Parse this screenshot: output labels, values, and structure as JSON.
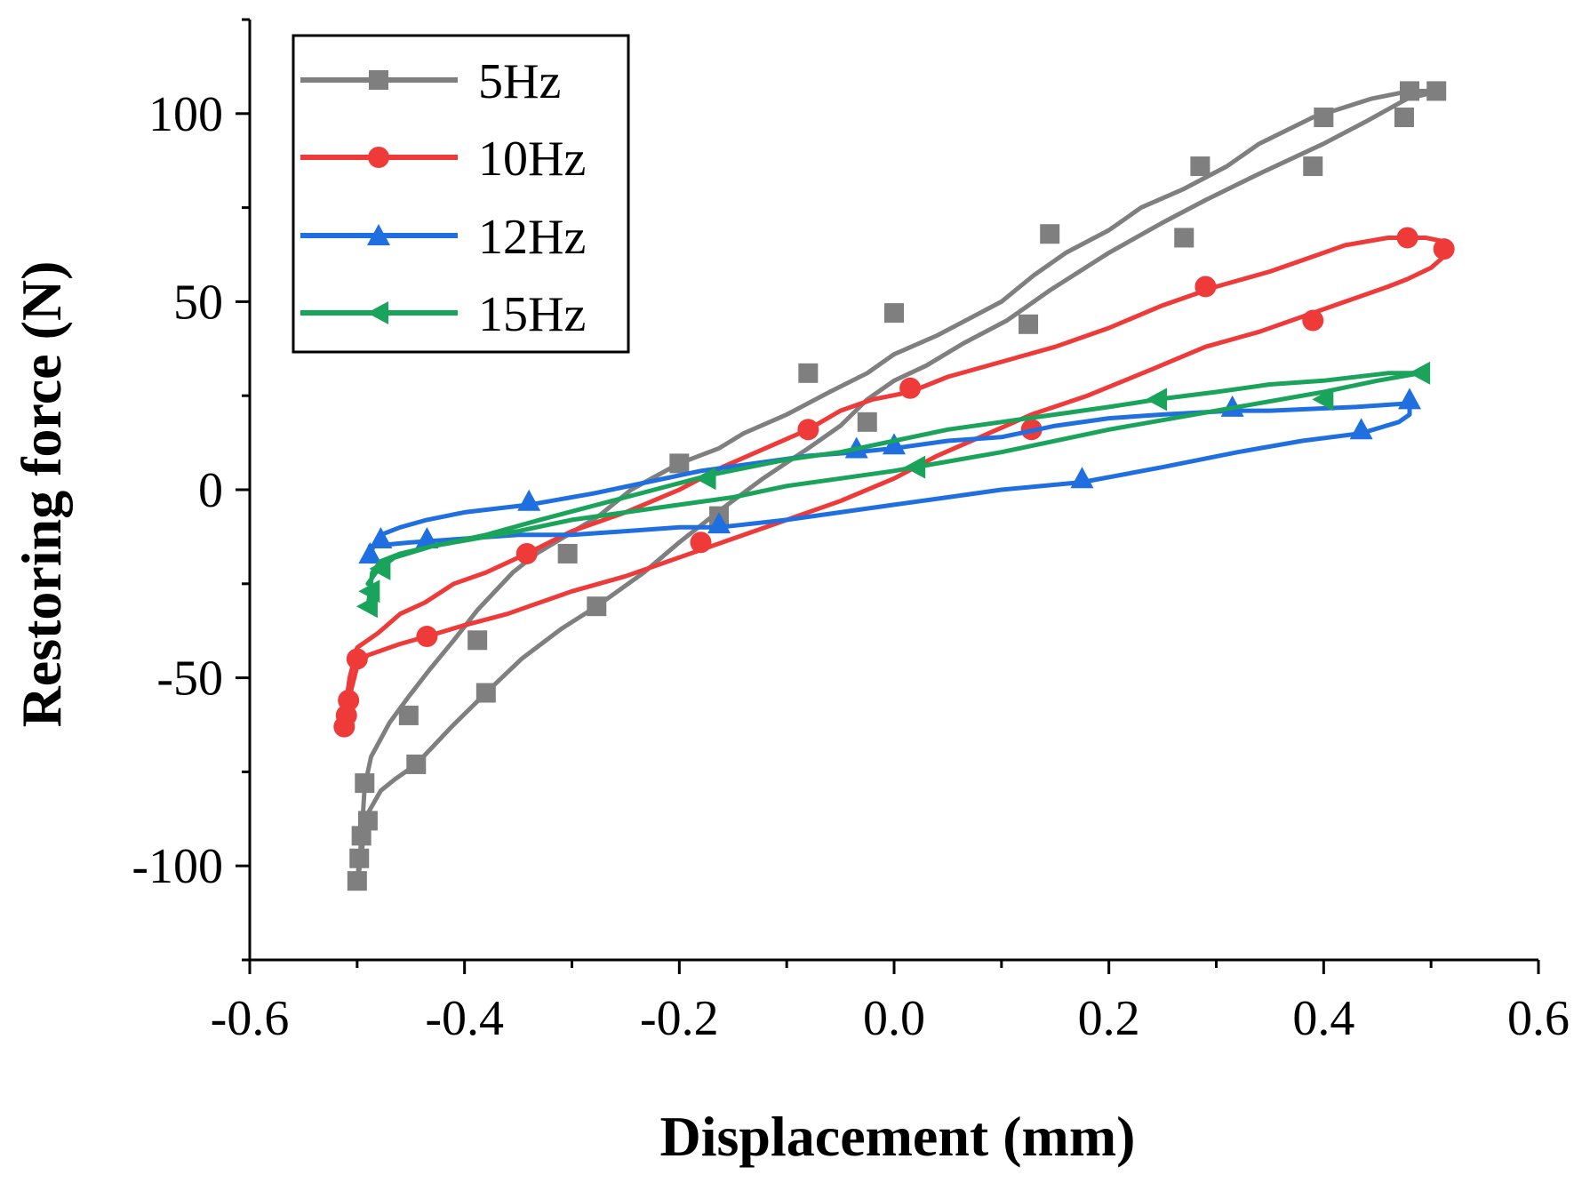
{
  "chart_data": {
    "type": "line",
    "title": "",
    "xlabel": "Displacement (mm)",
    "ylabel": "Restoring force (N)",
    "xlim": [
      -0.6,
      0.6
    ],
    "ylim": [
      -125,
      125
    ],
    "xticks": [
      -0.6,
      -0.4,
      -0.2,
      0.0,
      0.2,
      0.4,
      0.6
    ],
    "xtick_labels": [
      "-0.6",
      "-0.4",
      "-0.2",
      "0.0",
      "0.2",
      "0.4",
      "0.6"
    ],
    "yticks": [
      -100,
      -50,
      0,
      50,
      100
    ],
    "ytick_labels": [
      "-100",
      "-50",
      "0",
      "50",
      "100"
    ],
    "grid": false,
    "legend_position": "top-left",
    "series": [
      {
        "name": "5Hz",
        "color": "#7f7f7f",
        "marker": "square",
        "x": [
          -0.5,
          -0.498,
          -0.496,
          -0.494,
          -0.49,
          -0.478,
          -0.465,
          -0.445,
          -0.412,
          -0.38,
          -0.347,
          -0.31,
          -0.277,
          -0.233,
          -0.2,
          -0.16,
          -0.122,
          -0.08,
          -0.05,
          -0.025,
          0.0,
          0.03,
          0.065,
          0.105,
          0.145,
          0.2,
          0.25,
          0.29,
          0.34,
          0.4,
          0.44,
          0.478,
          0.508,
          0.508,
          0.48,
          0.445,
          0.39,
          0.34,
          0.31,
          0.27,
          0.23,
          0.2,
          0.16,
          0.13,
          0.1,
          0.06,
          0.04,
          0.0,
          -0.025,
          -0.06,
          -0.1,
          -0.14,
          -0.163,
          -0.2,
          -0.245,
          -0.275,
          -0.304,
          -0.333,
          -0.355,
          -0.388,
          -0.41,
          -0.433,
          -0.452,
          -0.47,
          -0.487,
          -0.493,
          -0.495,
          -0.497,
          -0.5
        ],
        "y": [
          -104,
          -101,
          -97,
          -92,
          -86,
          -80,
          -77,
          -73,
          -63,
          -54,
          -45,
          -37,
          -31,
          -22,
          -14,
          -5,
          3,
          11,
          17,
          24,
          29,
          33,
          39,
          45,
          53,
          63,
          71,
          77,
          84,
          92,
          98,
          104,
          106,
          106,
          106,
          104,
          99,
          92,
          86,
          80,
          75,
          69,
          63,
          57,
          50,
          44,
          41,
          36,
          31,
          26,
          20,
          15,
          11,
          7,
          0,
          -7,
          -12,
          -17,
          -22,
          -32,
          -40,
          -48,
          -55,
          -62,
          -71,
          -79,
          -88,
          -96,
          -104
        ],
        "marker_x": [
          -0.498,
          -0.496,
          -0.49,
          -0.445,
          -0.38,
          -0.277,
          -0.163,
          -0.08,
          -0.025,
          0.0,
          0.125,
          0.145,
          0.27,
          0.285,
          0.39,
          0.4,
          0.475,
          0.48,
          0.505,
          -0.2,
          -0.304,
          -0.388,
          -0.452,
          -0.493,
          -0.5
        ],
        "marker_y": [
          -98,
          -92,
          -88,
          -73,
          -54,
          -31,
          -7,
          31,
          18,
          47,
          44,
          68,
          67,
          86,
          86,
          99,
          99,
          106,
          106,
          7,
          -17,
          -40,
          -60,
          -78,
          -104
        ]
      },
      {
        "name": "10Hz",
        "color": "#ef3a3a",
        "marker": "circle",
        "x": [
          -0.512,
          -0.51,
          -0.508,
          -0.5,
          -0.49,
          -0.46,
          -0.435,
          -0.4,
          -0.36,
          -0.34,
          -0.3,
          -0.25,
          -0.2,
          -0.15,
          -0.1,
          -0.05,
          0.0,
          0.04,
          0.08,
          0.128,
          0.18,
          0.24,
          0.29,
          0.34,
          0.39,
          0.42,
          0.46,
          0.478,
          0.5,
          0.512,
          0.512,
          0.495,
          0.46,
          0.42,
          0.39,
          0.35,
          0.3,
          0.25,
          0.2,
          0.15,
          0.1,
          0.05,
          0.015,
          -0.02,
          -0.05,
          -0.08,
          -0.12,
          -0.16,
          -0.2,
          -0.25,
          -0.3,
          -0.342,
          -0.38,
          -0.41,
          -0.437,
          -0.46,
          -0.48,
          -0.5,
          -0.507,
          -0.51,
          -0.512
        ],
        "y": [
          -63,
          -60,
          -56,
          -47,
          -44,
          -41,
          -39,
          -36,
          -33,
          -31,
          -27,
          -23,
          -18,
          -13,
          -8,
          -3,
          3,
          9,
          14,
          20,
          25,
          32,
          38,
          42,
          47,
          50,
          54,
          56,
          59,
          62,
          66,
          67,
          67,
          65,
          62,
          58,
          54,
          49,
          43,
          38,
          34,
          30,
          26,
          24,
          21,
          16,
          11,
          6,
          0,
          -6,
          -11,
          -17,
          -22,
          -25,
          -30,
          -33,
          -38,
          -42,
          -50,
          -56,
          -63
        ],
        "marker_x": [
          -0.512,
          -0.51,
          -0.508,
          -0.5,
          -0.435,
          -0.342,
          -0.18,
          -0.08,
          0.015,
          0.128,
          0.29,
          0.39,
          0.478,
          0.512
        ],
        "marker_y": [
          -63,
          -60,
          -56,
          -45,
          -39,
          -17,
          -14,
          16,
          27,
          16,
          54,
          45,
          67,
          64
        ]
      },
      {
        "name": "12Hz",
        "color": "#1f6fe0",
        "marker": "triangle-up",
        "x": [
          -0.488,
          -0.45,
          -0.4,
          -0.35,
          -0.3,
          -0.25,
          -0.2,
          -0.163,
          -0.1,
          -0.05,
          0.0,
          0.05,
          0.1,
          0.175,
          0.25,
          0.32,
          0.38,
          0.435,
          0.47,
          0.48,
          0.48,
          0.43,
          0.35,
          0.315,
          0.25,
          0.2,
          0.15,
          0.1,
          0.05,
          0.0,
          -0.035,
          -0.08,
          -0.13,
          -0.18,
          -0.23,
          -0.28,
          -0.34,
          -0.4,
          -0.435,
          -0.46,
          -0.478,
          -0.485,
          -0.488
        ],
        "y": [
          -15,
          -14,
          -13,
          -12,
          -12,
          -11,
          -10,
          -10,
          -8,
          -6,
          -4,
          -2,
          0,
          2,
          6,
          10,
          13,
          15,
          18,
          20,
          23,
          22,
          21,
          21,
          20,
          19,
          17,
          14,
          13,
          11,
          10,
          9,
          7,
          5,
          2,
          -1,
          -4,
          -6,
          -8,
          -10,
          -12,
          -15,
          -18
        ],
        "marker_x": [
          -0.488,
          -0.478,
          -0.435,
          -0.34,
          -0.163,
          -0.035,
          0.0,
          0.175,
          0.315,
          0.435,
          0.48
        ],
        "marker_y": [
          -17,
          -13,
          -13,
          -3,
          -9,
          11,
          12,
          3,
          22,
          16,
          24
        ]
      },
      {
        "name": "15Hz",
        "color": "#1aa35a",
        "marker": "triangle-left",
        "x": [
          -0.49,
          -0.488,
          -0.486,
          -0.478,
          -0.46,
          -0.43,
          -0.39,
          -0.35,
          -0.3,
          -0.25,
          -0.2,
          -0.15,
          -0.1,
          -0.05,
          0.0,
          0.02,
          0.1,
          0.2,
          0.3,
          0.4,
          0.45,
          0.49,
          0.49,
          0.46,
          0.4,
          0.35,
          0.3,
          0.245,
          0.2,
          0.15,
          0.1,
          0.05,
          0.0,
          -0.05,
          -0.1,
          -0.17,
          -0.25,
          -0.33,
          -0.38,
          -0.43,
          -0.465,
          -0.48,
          -0.49
        ],
        "y": [
          -31,
          -27,
          -22,
          -19,
          -17,
          -15,
          -13,
          -11,
          -8,
          -6,
          -4,
          -2,
          1,
          3,
          5,
          6,
          10,
          16,
          21,
          26,
          29,
          31,
          31,
          31,
          29,
          28,
          26,
          24,
          22,
          20,
          18,
          16,
          13,
          10,
          8,
          4,
          -2,
          -8,
          -12,
          -15,
          -18,
          -21,
          -25
        ],
        "marker_x": [
          -0.49,
          -0.488,
          -0.478,
          -0.175,
          0.02,
          0.245,
          0.4,
          0.49
        ],
        "marker_y": [
          -31,
          -27,
          -21,
          3,
          6,
          24,
          24,
          31
        ]
      }
    ]
  }
}
